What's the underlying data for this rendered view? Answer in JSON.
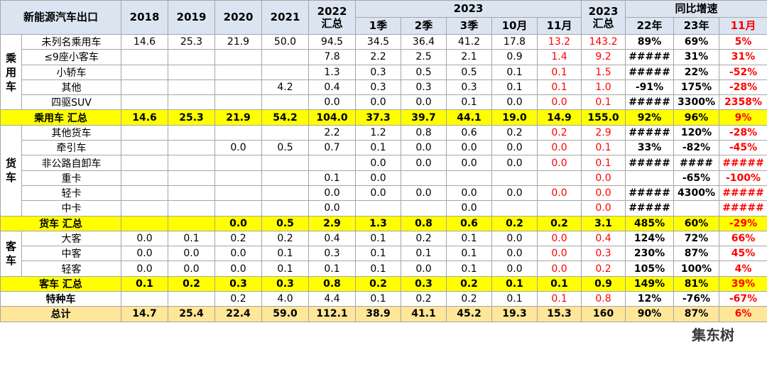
{
  "header": {
    "corner": "新能源汽车出口",
    "years": [
      "2018",
      "2019",
      "2020",
      "2021",
      "2022\n汇总"
    ],
    "group_2023": "2023",
    "months": [
      "1季",
      "2季",
      "3季",
      "10月",
      "11月"
    ],
    "total_2023": "2023\n汇总",
    "growth": "同比增速",
    "growth_cols": [
      "22年",
      "23年",
      "11月"
    ]
  },
  "sections": [
    {
      "label": "乘用车",
      "rows": [
        {
          "name": "未列名乘用车",
          "cells": [
            "14.6",
            "25.3",
            "21.9",
            "50.0",
            "94.5",
            "34.5",
            "36.4",
            "41.2",
            "17.8",
            "13.2",
            "143.2",
            "89%",
            "69%",
            "5%"
          ]
        },
        {
          "name": "≤9座小客车",
          "cells": [
            null,
            null,
            null,
            null,
            "7.8",
            "2.2",
            "2.5",
            "2.1",
            "0.9",
            "1.4",
            "9.2",
            "#####",
            "31%",
            "31%"
          ]
        },
        {
          "name": "小轿车",
          "cells": [
            null,
            null,
            null,
            null,
            "1.3",
            "0.3",
            "0.5",
            "0.5",
            "0.1",
            "0.1",
            "1.5",
            "#####",
            "22%",
            "-52%"
          ]
        },
        {
          "name": "其他",
          "cells": [
            null,
            null,
            null,
            "4.2",
            "0.4",
            "0.3",
            "0.3",
            "0.3",
            "0.1",
            "0.1",
            "1.0",
            "-91%",
            "175%",
            "-28%"
          ]
        },
        {
          "name": "四驱SUV",
          "cells": [
            null,
            null,
            null,
            null,
            "0.0",
            "0.0",
            "0.0",
            "0.1",
            "0.0",
            "0.0",
            "0.1",
            "#####",
            "3300%",
            "2358%"
          ]
        }
      ],
      "total": {
        "name": "乘用车 汇总",
        "cells": [
          "14.6",
          "25.3",
          "21.9",
          "54.2",
          "104.0",
          "37.3",
          "39.7",
          "44.1",
          "19.0",
          "14.9",
          "155.0",
          "92%",
          "96%",
          "9%"
        ]
      }
    },
    {
      "label": "货车",
      "rows": [
        {
          "name": "其他货车",
          "cells": [
            null,
            null,
            null,
            null,
            "2.2",
            "1.2",
            "0.8",
            "0.6",
            "0.2",
            "0.2",
            "2.9",
            "#####",
            "120%",
            "-28%"
          ]
        },
        {
          "name": "牵引车",
          "cells": [
            null,
            null,
            "0.0",
            "0.5",
            "0.7",
            "0.1",
            "0.0",
            "0.0",
            "0.0",
            "0.0",
            "0.1",
            "33%",
            "-82%",
            "-45%"
          ]
        },
        {
          "name": "非公路自卸车",
          "cells": [
            null,
            null,
            null,
            null,
            null,
            "0.0",
            "0.0",
            "0.0",
            "0.0",
            "0.0",
            "0.1",
            "#####",
            "####",
            "#####"
          ]
        },
        {
          "name": "重卡",
          "cells": [
            null,
            null,
            null,
            null,
            "0.1",
            "0.0",
            null,
            null,
            null,
            null,
            "0.0",
            null,
            "-65%",
            "-100%"
          ]
        },
        {
          "name": "轻卡",
          "cells": [
            null,
            null,
            null,
            null,
            "0.0",
            "0.0",
            "0.0",
            "0.0",
            "0.0",
            "0.0",
            "0.0",
            "#####",
            "4300%",
            "#####"
          ]
        },
        {
          "name": "中卡",
          "cells": [
            null,
            null,
            null,
            null,
            "0.0",
            null,
            null,
            "0.0",
            null,
            null,
            "0.0",
            "#####",
            null,
            "#####"
          ]
        }
      ],
      "total": {
        "name": "货车 汇总",
        "cells": [
          null,
          null,
          "0.0",
          "0.5",
          "2.9",
          "1.3",
          "0.8",
          "0.6",
          "0.2",
          "0.2",
          "3.1",
          "485%",
          "60%",
          "-29%"
        ]
      }
    },
    {
      "label": "客车",
      "rows": [
        {
          "name": "大客",
          "cells": [
            "0.0",
            "0.1",
            "0.2",
            "0.2",
            "0.4",
            "0.1",
            "0.2",
            "0.1",
            "0.0",
            "0.0",
            "0.4",
            "124%",
            "72%",
            "66%"
          ]
        },
        {
          "name": "中客",
          "cells": [
            "0.0",
            "0.0",
            "0.0",
            "0.1",
            "0.3",
            "0.1",
            "0.1",
            "0.1",
            "0.0",
            "0.0",
            "0.3",
            "230%",
            "87%",
            "45%"
          ]
        },
        {
          "name": "轻客",
          "cells": [
            "0.0",
            "0.0",
            "0.0",
            "0.1",
            "0.1",
            "0.1",
            "0.0",
            "0.1",
            "0.0",
            "0.0",
            "0.2",
            "105%",
            "100%",
            "4%"
          ]
        }
      ],
      "total": {
        "name": "客车 汇总",
        "cells": [
          "0.1",
          "0.2",
          "0.3",
          "0.3",
          "0.8",
          "0.2",
          "0.3",
          "0.2",
          "0.1",
          "0.1",
          "0.9",
          "149%",
          "81%",
          "39%"
        ]
      }
    }
  ],
  "special": {
    "name": "特种车",
    "cells": [
      null,
      null,
      "0.2",
      "4.0",
      "4.4",
      "0.1",
      "0.2",
      "0.2",
      "0.1",
      "0.1",
      "0.8",
      "12%",
      "-76%",
      "-67%"
    ]
  },
  "grand_total": {
    "name": "总计",
    "cells": [
      "14.7",
      "25.4",
      "22.4",
      "59.0",
      "112.1",
      "38.9",
      "41.1",
      "45.2",
      "19.3",
      "15.3",
      "160",
      "90%",
      "87%",
      "6%"
    ]
  },
  "watermark": "集东树"
}
